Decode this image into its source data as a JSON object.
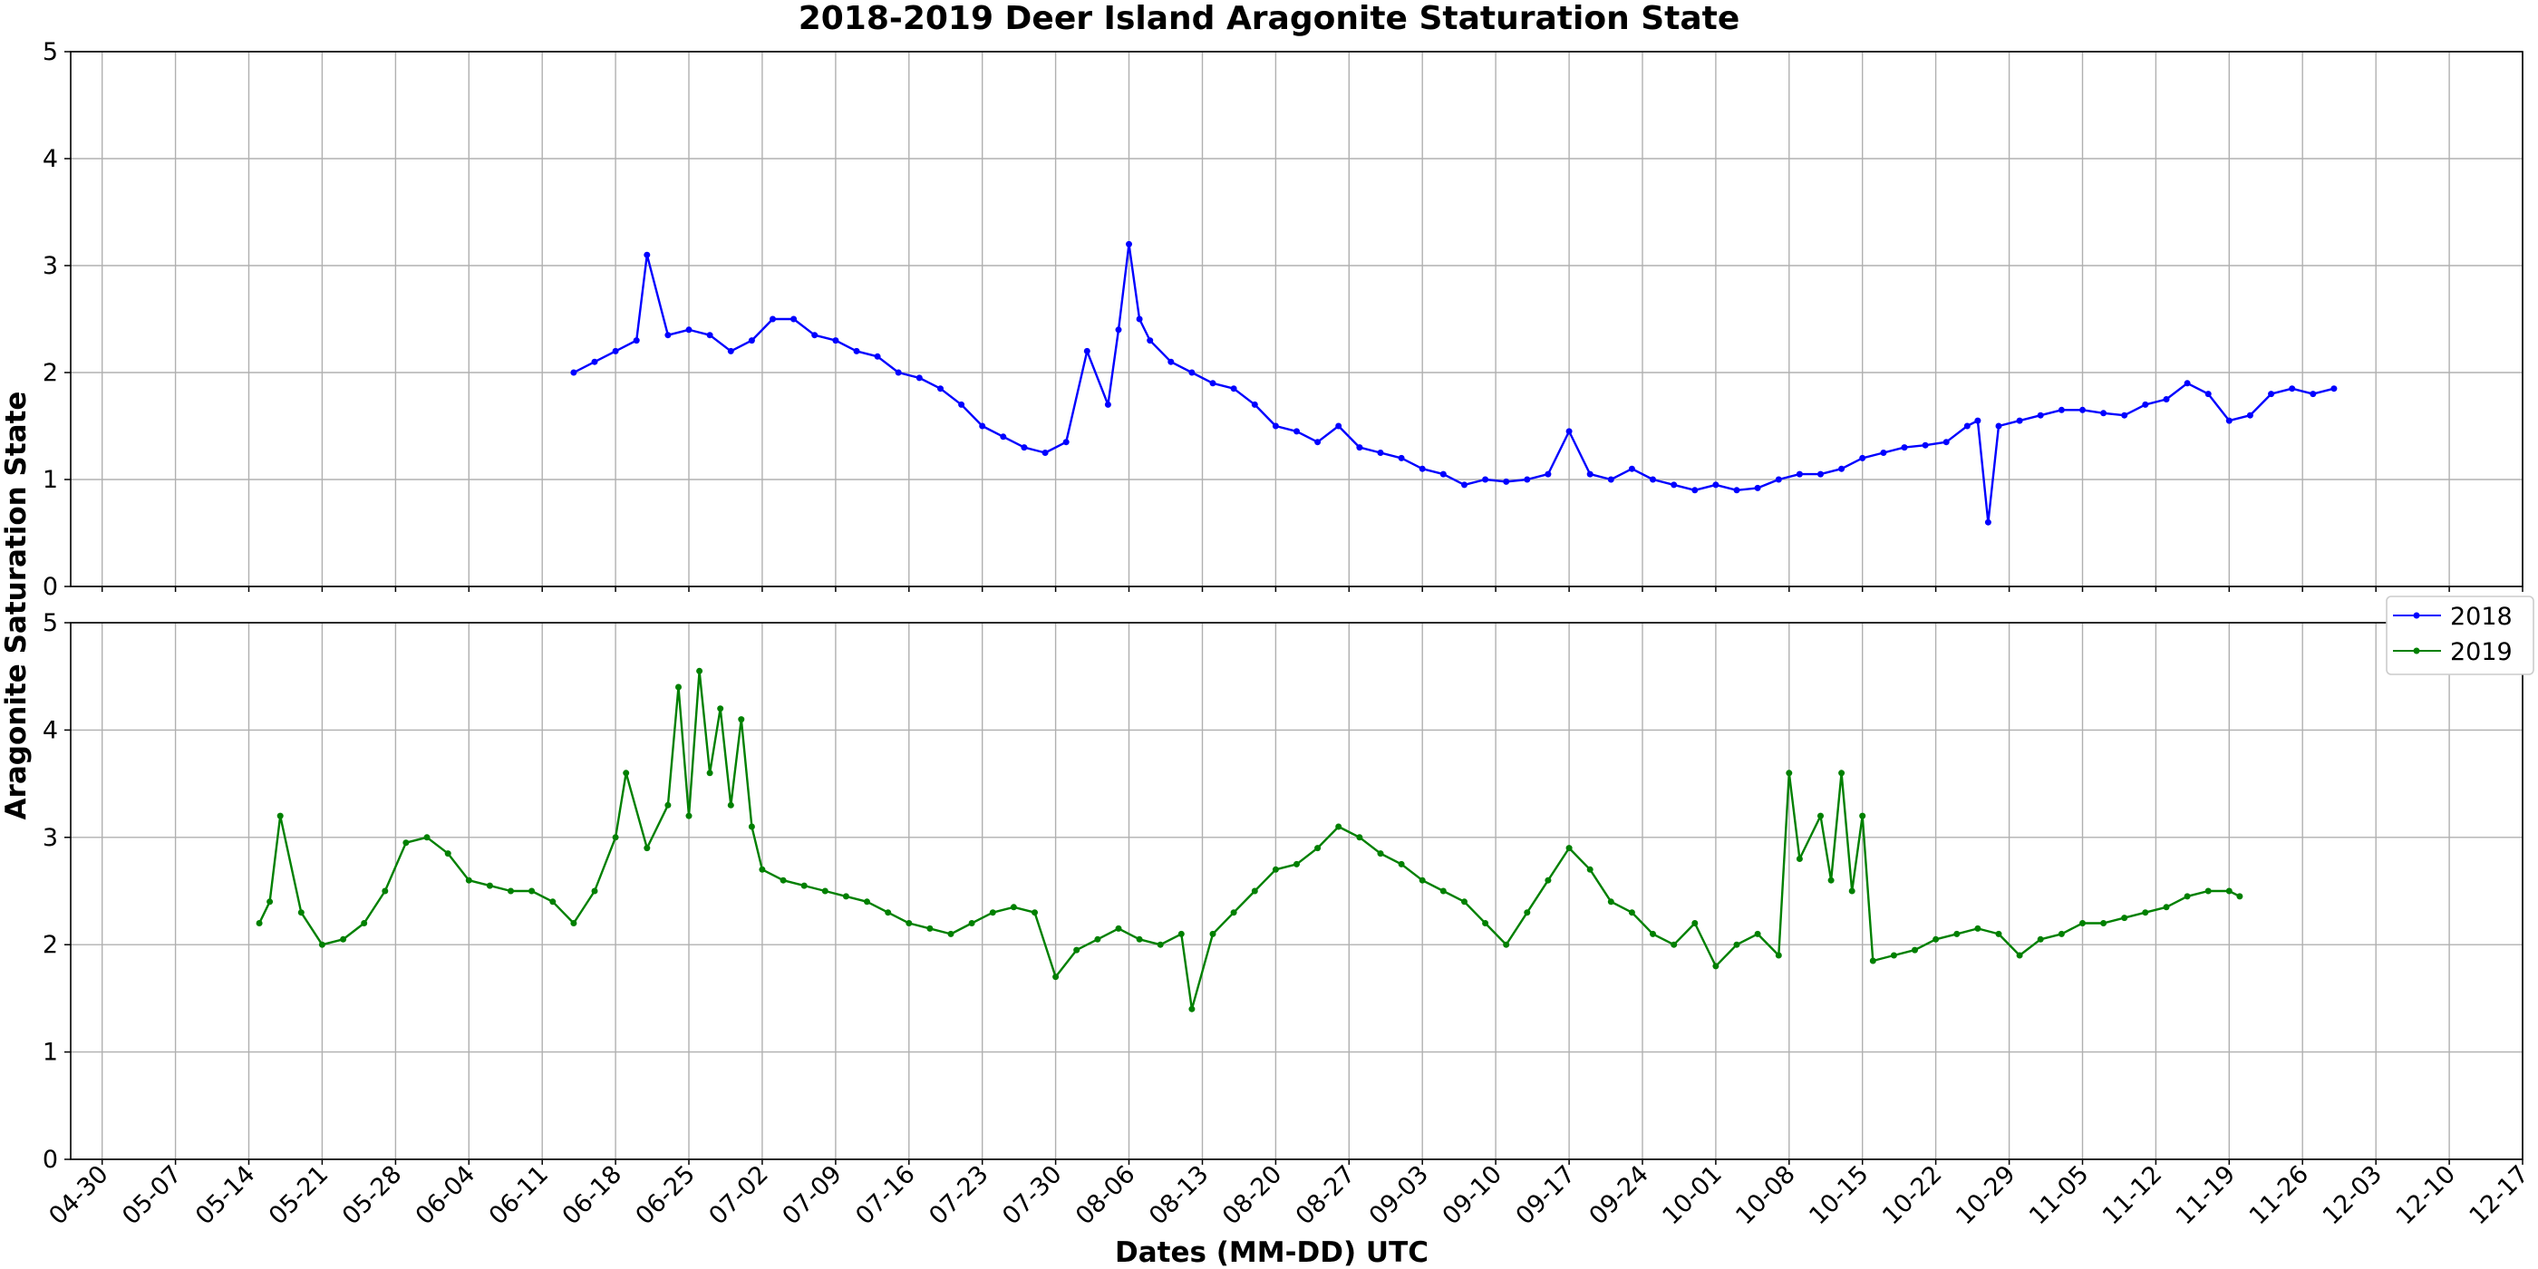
{
  "chart_data": {
    "type": "line",
    "title": "2018-2019 Deer Island Aragonite Staturation State",
    "xlabel": "Dates (MM-DD) UTC",
    "ylabel": "Aragonite Saturation State",
    "grid": true,
    "legend_position": "right, between panels",
    "x_ticks": [
      "04-30",
      "05-07",
      "05-14",
      "05-21",
      "05-28",
      "06-04",
      "06-11",
      "06-18",
      "06-25",
      "07-02",
      "07-09",
      "07-16",
      "07-23",
      "07-30",
      "08-06",
      "08-13",
      "08-20",
      "08-27",
      "09-03",
      "09-10",
      "09-17",
      "09-24",
      "10-01",
      "10-08",
      "10-15",
      "10-22",
      "10-29",
      "11-05",
      "11-12",
      "11-19",
      "11-26",
      "12-03",
      "12-10",
      "12-17"
    ],
    "xlim": [
      "04-27",
      "12-17"
    ],
    "ylim": [
      0,
      5
    ],
    "y_ticks": [
      "0",
      "1",
      "2",
      "3",
      "4",
      "5"
    ],
    "panels": [
      {
        "series": [
          {
            "name": "2018",
            "color": "#0000ff",
            "x": [
              "06-14",
              "06-16",
              "06-18",
              "06-20",
              "06-21",
              "06-23",
              "06-25",
              "06-27",
              "06-29",
              "07-01",
              "07-03",
              "07-05",
              "07-07",
              "07-09",
              "07-11",
              "07-13",
              "07-15",
              "07-17",
              "07-19",
              "07-21",
              "07-23",
              "07-25",
              "07-27",
              "07-29",
              "07-31",
              "08-02",
              "08-04",
              "08-05",
              "08-06",
              "08-07",
              "08-08",
              "08-10",
              "08-12",
              "08-14",
              "08-16",
              "08-18",
              "08-20",
              "08-22",
              "08-24",
              "08-26",
              "08-28",
              "08-30",
              "09-01",
              "09-03",
              "09-05",
              "09-07",
              "09-09",
              "09-11",
              "09-13",
              "09-15",
              "09-17",
              "09-19",
              "09-21",
              "09-23",
              "09-25",
              "09-27",
              "09-29",
              "10-01",
              "10-03",
              "10-05",
              "10-07",
              "10-09",
              "10-11",
              "10-13",
              "10-15",
              "10-17",
              "10-19",
              "10-21",
              "10-23",
              "10-25",
              "10-26",
              "10-27",
              "10-28",
              "10-30",
              "11-01",
              "11-03",
              "11-05",
              "11-07",
              "11-09",
              "11-11",
              "11-13",
              "11-15",
              "11-17",
              "11-19",
              "11-21",
              "11-23",
              "11-25",
              "11-27",
              "11-29"
            ],
            "y": [
              2.0,
              2.1,
              2.2,
              2.3,
              3.1,
              2.35,
              2.4,
              2.35,
              2.2,
              2.3,
              2.5,
              2.5,
              2.35,
              2.3,
              2.2,
              2.15,
              2.0,
              1.95,
              1.85,
              1.7,
              1.5,
              1.4,
              1.3,
              1.25,
              1.35,
              2.2,
              1.7,
              2.4,
              3.2,
              2.5,
              2.3,
              2.1,
              2.0,
              1.9,
              1.85,
              1.7,
              1.5,
              1.45,
              1.35,
              1.5,
              1.3,
              1.25,
              1.2,
              1.1,
              1.05,
              0.95,
              1.0,
              0.98,
              1.0,
              1.05,
              1.45,
              1.05,
              1.0,
              1.1,
              1.0,
              0.95,
              0.9,
              0.95,
              0.9,
              0.92,
              1.0,
              1.05,
              1.05,
              1.1,
              1.2,
              1.25,
              1.3,
              1.32,
              1.35,
              1.5,
              1.55,
              0.6,
              1.5,
              1.55,
              1.6,
              1.65,
              1.65,
              1.62,
              1.6,
              1.7,
              1.75,
              1.9,
              1.8,
              1.55,
              1.6,
              1.8,
              1.85,
              1.8,
              1.85
            ]
          }
        ]
      },
      {
        "series": [
          {
            "name": "2019",
            "color": "#008000",
            "x": [
              "05-15",
              "05-16",
              "05-17",
              "05-19",
              "05-21",
              "05-23",
              "05-25",
              "05-27",
              "05-29",
              "05-31",
              "06-02",
              "06-04",
              "06-06",
              "06-08",
              "06-10",
              "06-12",
              "06-14",
              "06-16",
              "06-18",
              "06-19",
              "06-21",
              "06-23",
              "06-24",
              "06-25",
              "06-26",
              "06-27",
              "06-28",
              "06-29",
              "06-30",
              "07-01",
              "07-02",
              "07-04",
              "07-06",
              "07-08",
              "07-10",
              "07-12",
              "07-14",
              "07-16",
              "07-18",
              "07-20",
              "07-22",
              "07-24",
              "07-26",
              "07-28",
              "07-30",
              "08-01",
              "08-03",
              "08-05",
              "08-07",
              "08-09",
              "08-11",
              "08-12",
              "08-14",
              "08-16",
              "08-18",
              "08-20",
              "08-22",
              "08-24",
              "08-26",
              "08-28",
              "08-30",
              "09-01",
              "09-03",
              "09-05",
              "09-07",
              "09-09",
              "09-11",
              "09-13",
              "09-15",
              "09-17",
              "09-19",
              "09-21",
              "09-23",
              "09-25",
              "09-27",
              "09-29",
              "10-01",
              "10-03",
              "10-05",
              "10-07",
              "10-08",
              "10-09",
              "10-11",
              "10-12",
              "10-13",
              "10-14",
              "10-15",
              "10-16",
              "10-18",
              "10-20",
              "10-22",
              "10-24",
              "10-26",
              "10-28",
              "10-30",
              "11-01",
              "11-03",
              "11-05",
              "11-07",
              "11-09",
              "11-11",
              "11-13",
              "11-15",
              "11-17",
              "11-19",
              "11-20"
            ],
            "y": [
              2.2,
              2.4,
              3.2,
              2.3,
              2.0,
              2.05,
              2.2,
              2.5,
              2.95,
              3.0,
              2.85,
              2.6,
              2.55,
              2.5,
              2.5,
              2.4,
              2.2,
              2.5,
              3.0,
              3.6,
              2.9,
              3.3,
              4.4,
              3.2,
              4.55,
              3.6,
              4.2,
              3.3,
              4.1,
              3.1,
              2.7,
              2.6,
              2.55,
              2.5,
              2.45,
              2.4,
              2.3,
              2.2,
              2.15,
              2.1,
              2.2,
              2.3,
              2.35,
              2.3,
              1.7,
              1.95,
              2.05,
              2.15,
              2.05,
              2.0,
              2.1,
              1.4,
              2.1,
              2.3,
              2.5,
              2.7,
              2.75,
              2.9,
              3.1,
              3.0,
              2.85,
              2.75,
              2.6,
              2.5,
              2.4,
              2.2,
              2.0,
              2.3,
              2.6,
              2.9,
              2.7,
              2.4,
              2.3,
              2.1,
              2.0,
              2.2,
              1.8,
              2.0,
              2.1,
              1.9,
              3.6,
              2.8,
              3.2,
              2.6,
              3.6,
              2.5,
              3.2,
              1.85,
              1.9,
              1.95,
              2.05,
              2.1,
              2.15,
              2.1,
              1.9,
              2.05,
              2.1,
              2.2,
              2.2,
              2.25,
              2.3,
              2.35,
              2.45,
              2.5,
              2.5,
              2.45
            ]
          }
        ]
      }
    ],
    "legend": [
      {
        "label": "2018",
        "color": "#0000ff"
      },
      {
        "label": "2019",
        "color": "#008000"
      }
    ]
  }
}
